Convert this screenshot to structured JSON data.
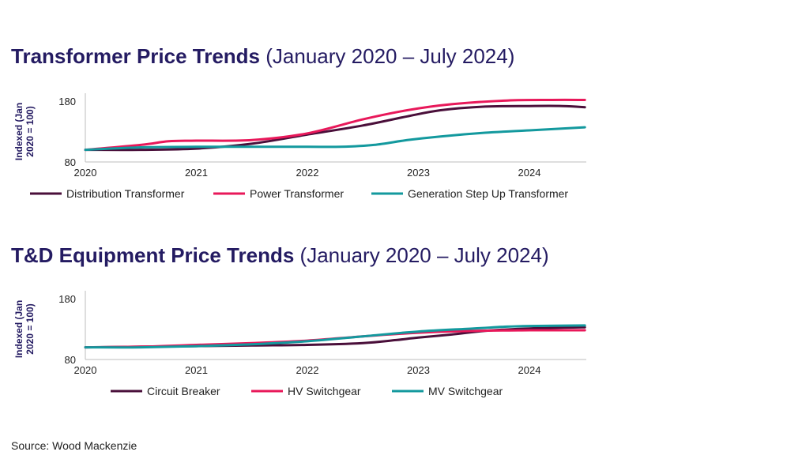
{
  "chart_data": [
    {
      "type": "line",
      "title_bold": "Transformer Price Trends",
      "title_rest": "(January 2020 – July 2024)",
      "ylabel_line1": "Indexed (Jan",
      "ylabel_line2": "2020 = 100)",
      "ylim": [
        80,
        180
      ],
      "yticks": [
        "180",
        "80"
      ],
      "xticks": [
        "2020",
        "2021",
        "2022",
        "2023",
        "2024"
      ],
      "xlim": [
        2020,
        2024.5
      ],
      "series": [
        {
          "name": "Distribution Transformer",
          "color": "#4a0f3a",
          "x": [
            2020,
            2020.5,
            2021,
            2021.5,
            2022,
            2022.5,
            2022.9,
            2023.2,
            2023.6,
            2024,
            2024.3,
            2024.5
          ],
          "values": [
            100,
            100,
            102,
            110,
            125,
            140,
            155,
            165,
            171,
            172,
            172,
            170
          ]
        },
        {
          "name": "Power Transformer",
          "color": "#e8185a",
          "x": [
            2020,
            2020.5,
            2020.75,
            2021,
            2021.5,
            2022,
            2022.5,
            2022.9,
            2023.3,
            2023.8,
            2024.2,
            2024.5
          ],
          "values": [
            100,
            108,
            114,
            115,
            116,
            127,
            150,
            165,
            175,
            181,
            182,
            182
          ]
        },
        {
          "name": "Generation Step Up Transformer",
          "color": "#13999e",
          "x": [
            2020,
            2020.5,
            2021,
            2021.5,
            2022,
            2022.3,
            2022.6,
            2022.9,
            2023.2,
            2023.6,
            2024,
            2024.5
          ],
          "values": [
            100,
            104,
            105,
            105,
            105,
            105,
            108,
            116,
            122,
            128,
            132,
            137
          ]
        }
      ]
    },
    {
      "type": "line",
      "title_bold": "T&D Equipment Price Trends",
      "title_rest": "(January 2020 – July 2024)",
      "ylabel_line1": "Indexed (Jan",
      "ylabel_line2": "2020 = 100)",
      "ylim": [
        80,
        180
      ],
      "yticks": [
        "180",
        "80"
      ],
      "xticks": [
        "2020",
        "2021",
        "2022",
        "2023",
        "2024"
      ],
      "xlim": [
        2020,
        2024.5
      ],
      "series": [
        {
          "name": "Circuit Breaker",
          "color": "#4a0f3a",
          "x": [
            2020,
            2020.5,
            2021,
            2021.5,
            2022,
            2022.5,
            2022.8,
            2023,
            2023.3,
            2023.6,
            2024,
            2024.5
          ],
          "values": [
            100,
            101,
            102,
            103,
            104,
            107,
            112,
            116,
            121,
            127,
            131,
            133
          ]
        },
        {
          "name": "HV Switchgear",
          "color": "#e8185a",
          "x": [
            2020,
            2020.5,
            2021,
            2021.5,
            2022,
            2022.5,
            2023,
            2023.5,
            2024,
            2024.5
          ],
          "values": [
            100,
            101,
            104,
            107,
            111,
            118,
            124,
            127,
            128,
            128
          ]
        },
        {
          "name": "MV Switchgear",
          "color": "#13999e",
          "x": [
            2020,
            2020.5,
            2021,
            2021.5,
            2022,
            2022.5,
            2023,
            2023.5,
            2023.8,
            2024,
            2024.5
          ],
          "values": [
            100,
            100,
            102,
            105,
            110,
            118,
            126,
            131,
            134,
            135,
            136
          ]
        }
      ]
    }
  ],
  "source_text": "Source: Wood Mackenzie"
}
